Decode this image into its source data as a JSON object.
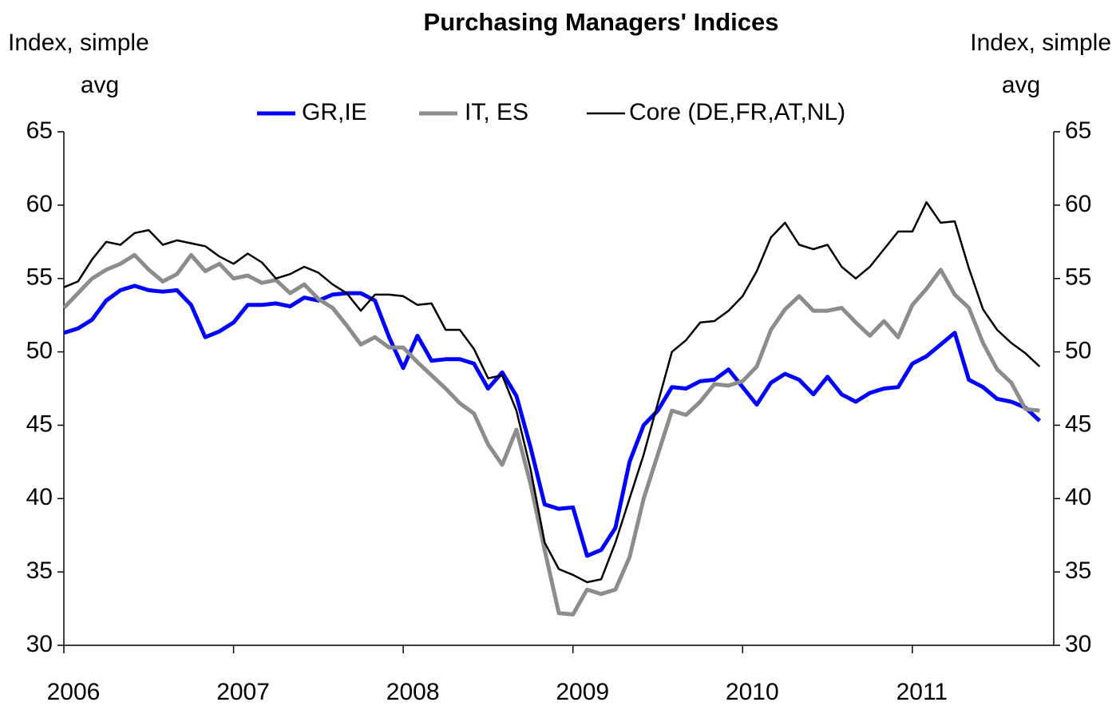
{
  "chart_data": {
    "type": "line",
    "title": "Purchasing Managers' Indices",
    "ylabel": [
      "Index, simple",
      "avg"
    ],
    "y2label": [
      "Index, simple",
      "avg"
    ],
    "categories": [
      "2006",
      null,
      null,
      null,
      null,
      null,
      null,
      null,
      null,
      null,
      null,
      null,
      "2007",
      null,
      null,
      null,
      null,
      null,
      null,
      null,
      null,
      null,
      null,
      null,
      "2008",
      null,
      null,
      null,
      null,
      null,
      null,
      null,
      null,
      null,
      null,
      null,
      "2009",
      null,
      null,
      null,
      null,
      null,
      null,
      null,
      null,
      null,
      null,
      null,
      "2010",
      null,
      null,
      null,
      null,
      null,
      null,
      null,
      null,
      null,
      null,
      null,
      "2011",
      null,
      null,
      null,
      null,
      null,
      null,
      null,
      null,
      null
    ],
    "series": [
      {
        "name": "GR,IE",
        "color": "#0000ff",
        "width": 5,
        "values": [
          51.3,
          51.6,
          52.2,
          53.5,
          54.2,
          54.5,
          54.2,
          54.1,
          54.2,
          53.2,
          51.0,
          51.4,
          52.0,
          53.2,
          53.2,
          53.3,
          53.1,
          53.7,
          53.5,
          53.9,
          54.0,
          54.0,
          53.5,
          51.0,
          48.9,
          51.1,
          49.4,
          49.5,
          49.5,
          49.2,
          47.5,
          48.6,
          47.0,
          43.5,
          39.6,
          39.3,
          39.4,
          36.1,
          36.5,
          38.0,
          42.5,
          45.0,
          46.0,
          47.6,
          47.5,
          48.0,
          48.1,
          48.8,
          47.6,
          46.4,
          47.9,
          48.5,
          48.1,
          47.1,
          48.3,
          47.1,
          46.6,
          47.2,
          47.5,
          47.6,
          49.2,
          49.7,
          50.5,
          51.3,
          48.1,
          47.6,
          46.8,
          46.6,
          46.2,
          45.3
        ]
      },
      {
        "name": "IT, ES",
        "color": "#8c8c8c",
        "width": 5,
        "values": [
          53.0,
          54.0,
          55.0,
          55.6,
          56.0,
          56.6,
          55.6,
          54.8,
          55.3,
          56.6,
          55.5,
          56.0,
          55.0,
          55.2,
          54.7,
          54.9,
          54.0,
          54.6,
          53.6,
          53.0,
          51.8,
          50.5,
          51.0,
          50.3,
          50.3,
          49.3,
          48.4,
          47.5,
          46.5,
          45.8,
          43.7,
          42.3,
          44.7,
          41.0,
          36.5,
          32.2,
          32.1,
          33.8,
          33.5,
          33.8,
          36.0,
          40.0,
          43.0,
          46.0,
          45.7,
          46.6,
          47.8,
          47.7,
          48.0,
          49.0,
          51.5,
          52.9,
          53.8,
          52.8,
          52.8,
          53.0,
          52.0,
          51.1,
          52.1,
          51.0,
          53.2,
          54.3,
          55.6,
          53.9,
          53.0,
          50.6,
          48.8,
          47.9,
          46.1,
          46.0
        ]
      },
      {
        "name": "Core (DE,FR,AT,NL)",
        "color": "#000000",
        "width": 2.5,
        "values": [
          54.4,
          54.8,
          56.3,
          57.5,
          57.3,
          58.1,
          58.3,
          57.3,
          57.6,
          57.4,
          57.2,
          56.5,
          56.0,
          56.7,
          56.1,
          55.0,
          55.3,
          55.8,
          55.4,
          54.6,
          54.0,
          52.8,
          53.9,
          53.9,
          53.8,
          53.2,
          53.3,
          51.5,
          51.5,
          50.2,
          48.2,
          48.4,
          46.0,
          42.0,
          37.0,
          35.2,
          34.8,
          34.3,
          34.5,
          37.0,
          40.0,
          43.0,
          46.5,
          50.0,
          50.8,
          52.0,
          52.1,
          52.8,
          53.8,
          55.5,
          57.8,
          58.8,
          57.3,
          57.0,
          57.3,
          55.8,
          55.0,
          55.8,
          57.0,
          58.2,
          58.2,
          60.2,
          58.8,
          58.9,
          55.7,
          52.9,
          51.5,
          50.6,
          49.9,
          49.0
        ]
      }
    ],
    "ylim": [
      30,
      65
    ],
    "yticks": [
      30,
      35,
      40,
      45,
      50,
      55,
      60,
      65
    ],
    "y2lim": [
      30,
      65
    ],
    "y2ticks": [
      30,
      35,
      40,
      45,
      50,
      55,
      60,
      65
    ],
    "grid": false
  }
}
